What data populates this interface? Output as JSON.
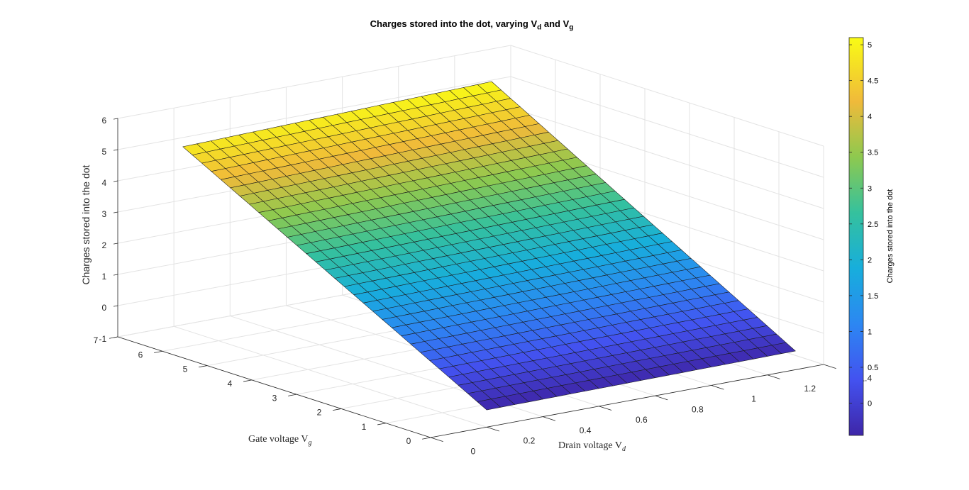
{
  "chart_data": {
    "type": "surface",
    "title": {
      "prefix": "Charges stored into the dot, varying V",
      "sub1": "d",
      "middle": " and V",
      "sub2": "g"
    },
    "xlabel": {
      "text": "Drain voltage V",
      "sub": "d"
    },
    "ylabel": {
      "text": "Gate voltage V",
      "sub": "g"
    },
    "zlabel": "Charges stored into the dot",
    "xlim": [
      0,
      1.4
    ],
    "ylim": [
      0,
      7
    ],
    "zlim": [
      -1,
      6
    ],
    "x_ticks": [
      "0",
      "0.2",
      "0.4",
      "0.6",
      "0.8",
      "1",
      "1.2",
      "1.4"
    ],
    "y_ticks": [
      "0",
      "1",
      "2",
      "3",
      "4",
      "5",
      "6",
      "7"
    ],
    "z_ticks": [
      "-1",
      "0",
      "1",
      "2",
      "3",
      "4",
      "5",
      "6"
    ],
    "x_range": [
      0.2,
      1.3
    ],
    "y_range": [
      0,
      6.8
    ],
    "z_corners": {
      "x_min_y_min": -0.45,
      "x_max_y_min": -0.4,
      "x_min_y_max": 4.85,
      "x_max_y_max": 5.1
    },
    "grid": true,
    "colormap": "parula",
    "colorbar": {
      "label": "Charges stored into the dot",
      "ticks": [
        "0",
        "0.5",
        "1",
        "1.5",
        "2",
        "2.5",
        "3",
        "3.5",
        "4",
        "4.5",
        "5"
      ],
      "clim": [
        -0.45,
        5.1
      ]
    }
  }
}
